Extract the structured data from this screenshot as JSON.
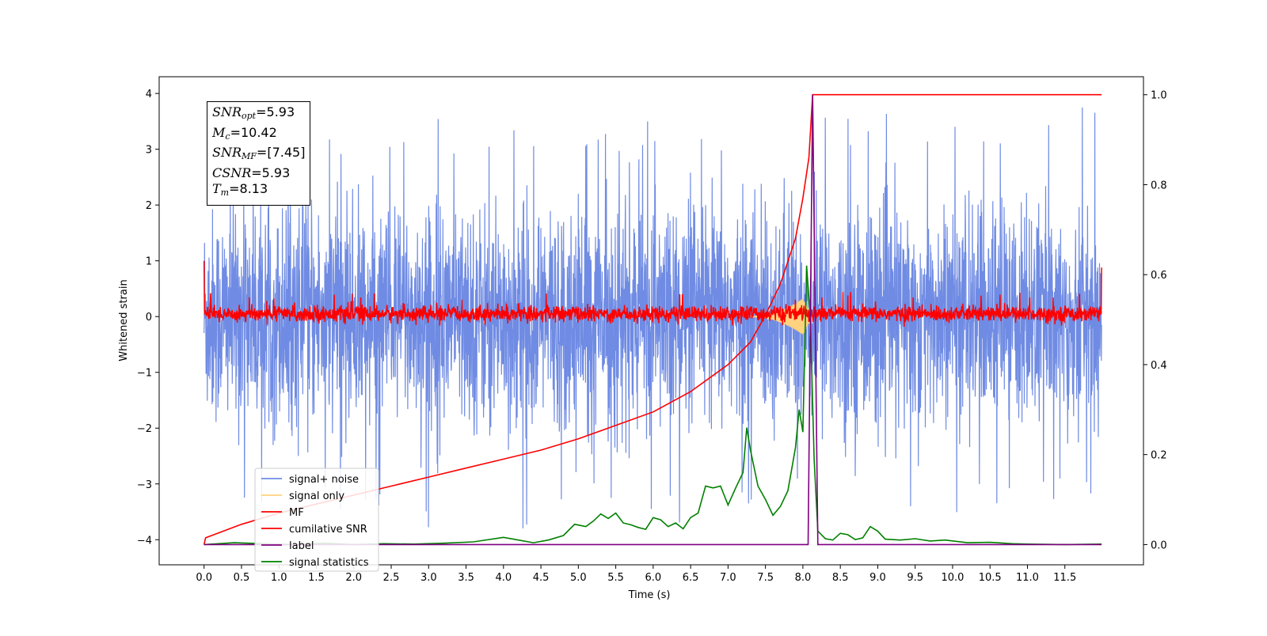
{
  "chart_data": {
    "type": "line",
    "title": "",
    "xlabel": "Time (s)",
    "ylabel": "Whitened strain",
    "xlim": [
      -0.6,
      12.55
    ],
    "ylim": [
      -4.45,
      4.3
    ],
    "y2lim": [
      -0.045,
      1.04
    ],
    "xticks": [
      0.0,
      0.5,
      1.0,
      1.5,
      2.0,
      2.5,
      3.0,
      3.5,
      4.0,
      4.5,
      5.0,
      5.5,
      6.0,
      6.5,
      7.0,
      7.5,
      8.0,
      8.5,
      9.0,
      9.5,
      10.0,
      10.5,
      11.0,
      11.5
    ],
    "xtick_labels": [
      "0.0",
      "0.5",
      "1.0",
      "1.5",
      "2.0",
      "2.5",
      "3.0",
      "3.5",
      "4.0",
      "4.5",
      "5.0",
      "5.5",
      "6.0",
      "6.5",
      "7.0",
      "7.5",
      "8.0",
      "8.5",
      "9.0",
      "9.5",
      "10.0",
      "10.5",
      "11.0",
      "11.5"
    ],
    "yticks": [
      -4,
      -3,
      -2,
      -1,
      0,
      1,
      2,
      3,
      4
    ],
    "ytick_labels": [
      "−4",
      "−3",
      "−2",
      "−1",
      "0",
      "1",
      "2",
      "3",
      "4"
    ],
    "y2ticks": [
      0.0,
      0.2,
      0.4,
      0.6,
      0.8,
      1.0
    ],
    "y2tick_labels": [
      "0.0",
      "0.2",
      "0.4",
      "0.6",
      "0.8",
      "1.0"
    ],
    "grid": false,
    "legend_position": "lower-left",
    "annotation": {
      "snr_opt": "=5.93",
      "mc": "=10.42",
      "snr_mf": "=[7.45]",
      "csnr": "=5.93",
      "tm": "=8.13"
    },
    "series": [
      {
        "name": "signal+ noise",
        "axis": "left",
        "color": "#6f8be3",
        "description": "whitened noisy strain, approx. range -3.8 to 3.9, centered near 0",
        "envelope": {
          "x_start": 0.0,
          "x_end": 11.99,
          "typical_low": -2.3,
          "typical_high": 2.4,
          "min": -3.8,
          "max": 3.9
        }
      },
      {
        "name": "signal only",
        "axis": "left",
        "color": "#ffd27f",
        "description": "chirp signal growing near merger around 7.6-8.1 s",
        "envelope": {
          "x_start": 7.3,
          "x_end": 8.15,
          "peak_amplitude": 0.33,
          "peak_x": 8.0
        }
      },
      {
        "name": "MF",
        "axis": "left",
        "color": "#ff0000",
        "description": "matched filter output, approx. range -0.2 to 0.45",
        "envelope": {
          "x_start": 0.0,
          "x_end": 11.99,
          "typical_low": -0.15,
          "typical_high": 0.25,
          "start_value": 1.0,
          "end_value": 0.88
        }
      },
      {
        "name": "cumilative SNR",
        "axis": "right",
        "color": "#ff0000",
        "x": [
          0.0,
          0.02,
          0.5,
          1.0,
          1.5,
          2.0,
          2.5,
          3.0,
          3.5,
          4.0,
          4.5,
          5.0,
          5.5,
          6.0,
          6.5,
          7.0,
          7.3,
          7.5,
          7.7,
          7.9,
          8.0,
          8.08,
          8.13,
          11.99
        ],
        "values": [
          0.0,
          0.015,
          0.045,
          0.07,
          0.09,
          0.11,
          0.13,
          0.15,
          0.17,
          0.19,
          0.21,
          0.235,
          0.265,
          0.295,
          0.34,
          0.4,
          0.45,
          0.51,
          0.58,
          0.68,
          0.77,
          0.86,
          1.0,
          1.0
        ]
      },
      {
        "name": "label",
        "axis": "right",
        "color": "#800080",
        "x": [
          0.0,
          8.07,
          8.13,
          8.2,
          11.99
        ],
        "values": [
          0.0,
          0.0,
          1.0,
          0.0,
          0.0
        ]
      },
      {
        "name": "signal statistics",
        "axis": "right",
        "color": "#008000",
        "x": [
          0.0,
          0.4,
          0.8,
          1.2,
          1.6,
          2.0,
          2.4,
          2.8,
          3.2,
          3.6,
          4.0,
          4.2,
          4.4,
          4.6,
          4.8,
          4.95,
          5.1,
          5.2,
          5.3,
          5.4,
          5.5,
          5.6,
          5.7,
          5.8,
          5.9,
          6.0,
          6.1,
          6.2,
          6.3,
          6.4,
          6.5,
          6.6,
          6.7,
          6.8,
          6.9,
          7.0,
          7.1,
          7.2,
          7.25,
          7.3,
          7.4,
          7.5,
          7.6,
          7.7,
          7.8,
          7.9,
          7.95,
          8.0,
          8.05,
          8.1,
          8.15,
          8.2,
          8.3,
          8.4,
          8.5,
          8.6,
          8.7,
          8.8,
          8.9,
          9.0,
          9.1,
          9.3,
          9.5,
          9.7,
          9.9,
          10.2,
          10.5,
          10.8,
          11.0,
          11.5,
          11.99
        ],
        "values": [
          0.0,
          0.004,
          0.002,
          0.0,
          0.003,
          0.0,
          0.002,
          0.001,
          0.003,
          0.006,
          0.016,
          0.01,
          0.004,
          0.01,
          0.02,
          0.045,
          0.04,
          0.052,
          0.068,
          0.058,
          0.07,
          0.048,
          0.044,
          0.038,
          0.034,
          0.06,
          0.055,
          0.04,
          0.048,
          0.035,
          0.06,
          0.07,
          0.13,
          0.126,
          0.13,
          0.088,
          0.125,
          0.16,
          0.26,
          0.21,
          0.13,
          0.1,
          0.065,
          0.085,
          0.12,
          0.215,
          0.3,
          0.25,
          0.62,
          0.5,
          0.19,
          0.03,
          0.013,
          0.01,
          0.025,
          0.022,
          0.011,
          0.015,
          0.04,
          0.03,
          0.012,
          0.01,
          0.013,
          0.008,
          0.01,
          0.004,
          0.005,
          0.002,
          0.001,
          0.0,
          0.001
        ]
      }
    ]
  }
}
